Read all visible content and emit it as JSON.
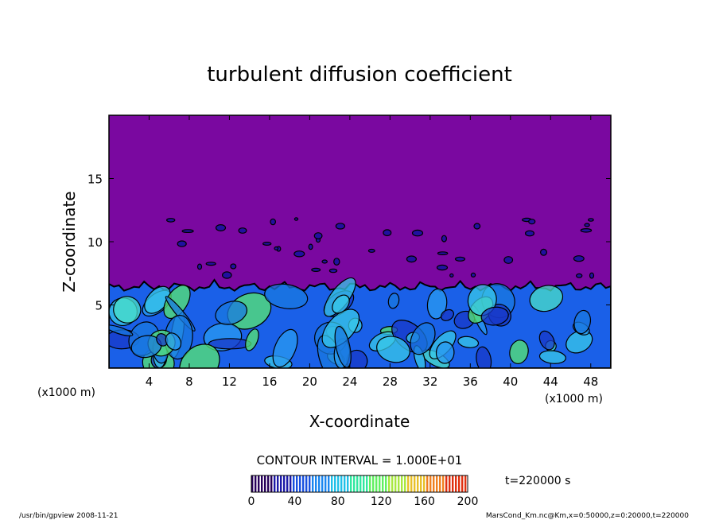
{
  "chart_data": {
    "type": "heatmap",
    "title": "turbulent diffusion coefficient",
    "xlabel": "X-coordinate",
    "ylabel": "Z-coordinate",
    "x_unit_left": "(x1000 m)",
    "x_unit_right": "(x1000 m)",
    "xlim": [
      0,
      50
    ],
    "ylim": [
      0,
      20
    ],
    "x_ticks": [
      4,
      8,
      12,
      16,
      20,
      24,
      28,
      32,
      36,
      40,
      44,
      48
    ],
    "y_ticks": [
      5,
      10,
      15
    ],
    "contour_interval_text": "CONTOUR INTERVAL = 1.000E+01",
    "time_text": "t=220000 s",
    "colorbar": {
      "ticks": [
        0,
        40,
        80,
        120,
        160,
        200
      ],
      "min": 0,
      "max": 200,
      "colors": [
        "#26005a",
        "#1c1aa8",
        "#1850e0",
        "#1a86f0",
        "#20c0e8",
        "#30e8a0",
        "#60f060",
        "#a8e840",
        "#e8c028",
        "#f08020",
        "#e03010"
      ]
    },
    "background_color": "#7a08a0",
    "mixed_layer_top": 7
  },
  "footer": {
    "left": "/usr/bin/gpview  2008-11-21",
    "right": "MarsCond_Km.nc@Km,x=0:50000,z=0:20000,t=220000"
  }
}
